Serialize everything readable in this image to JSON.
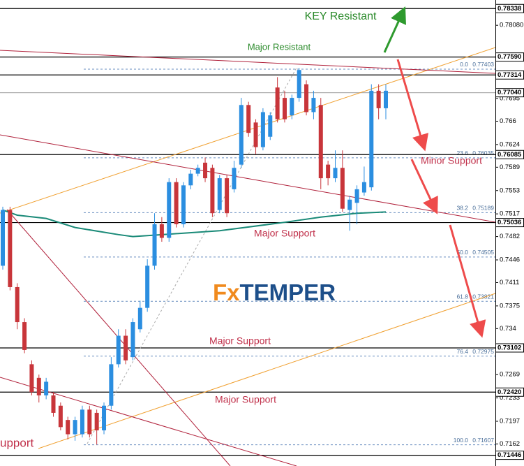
{
  "chart_data": {
    "type": "candlestick",
    "ylim": [
      0.7128,
      0.7847
    ],
    "up_color": "#2b8ee0",
    "down_color": "#c8353a",
    "yticks": [
      {
        "value": 0.7808,
        "label": "0.78080"
      },
      0.7695,
      0.766,
      0.7624,
      0.7589,
      0.7553,
      0.7517,
      0.7482,
      0.7446,
      0.7411,
      0.7375,
      0.734,
      0.7269,
      0.7233,
      0.7197,
      0.7162
    ],
    "levels": [
      0.78338,
      {
        "value": 0.7759,
        "label": "0.77590"
      },
      0.77314,
      {
        "value": 0.7704,
        "label": "0.77040"
      },
      0.76085,
      0.75036,
      0.73102,
      {
        "value": 0.7242,
        "label": "0.72420"
      },
      0.71446
    ],
    "level_colors": [
      "#000000",
      "#000000",
      "#000000",
      "#b0b0b0",
      "#000000",
      "#000000",
      "#000000",
      "#000000",
      "#000000"
    ],
    "fibonacci": [
      {
        "level": "0.0",
        "price": 0.77403
      },
      {
        "level": "23.6",
        "price": 0.76035
      },
      {
        "level": "38.2",
        "price": 0.75189
      },
      {
        "level": "50.0",
        "price": 0.74505
      },
      {
        "level": "61.8",
        "price": 0.73821
      },
      {
        "level": "76.4",
        "price": 0.72975
      },
      {
        "level": "100.0",
        "price": 0.71607
      }
    ],
    "candles": {
      "open": [
        0.7437,
        0.7523,
        0.7404,
        0.735,
        0.7285,
        0.7264,
        0.7237,
        0.7237,
        0.7221,
        0.7199,
        0.7177,
        0.7177,
        0.7215,
        0.721,
        0.7183,
        0.7221,
        0.7285,
        0.7329,
        0.7296,
        0.7339,
        0.7372,
        0.7437,
        0.7501,
        0.748,
        0.7566,
        0.7501,
        0.7561,
        0.7579,
        0.7596,
        0.7588,
        0.7523,
        0.7572,
        0.7555,
        0.7593,
        0.7685,
        0.7658,
        0.762,
        0.7636,
        0.7712,
        0.7696,
        0.7669,
        0.7696,
        0.7717,
        0.7674,
        0.7685,
        0.7593,
        0.7572,
        0.7588,
        0.7523,
        0.7534,
        0.755,
        0.7558,
        0.7707,
        0.768
      ],
      "high": [
        0.7528,
        0.7528,
        0.741,
        0.7356,
        0.7291,
        0.7269,
        0.7264,
        0.7242,
        0.7226,
        0.7204,
        0.7204,
        0.7221,
        0.7221,
        0.7215,
        0.7226,
        0.7296,
        0.7339,
        0.7339,
        0.7356,
        0.7383,
        0.7447,
        0.7518,
        0.7512,
        0.7572,
        0.7572,
        0.7566,
        0.7585,
        0.7593,
        0.7604,
        0.7593,
        0.7577,
        0.7577,
        0.7599,
        0.7696,
        0.769,
        0.7663,
        0.768,
        0.7674,
        0.7728,
        0.7707,
        0.7701,
        0.7742,
        0.7723,
        0.7707,
        0.7696,
        0.7599,
        0.7615,
        0.7615,
        0.7545,
        0.7561,
        0.759,
        0.7717,
        0.7717,
        0.7717
      ],
      "low": [
        0.7431,
        0.7399,
        0.7339,
        0.7302,
        0.7237,
        0.7226,
        0.7231,
        0.7204,
        0.7183,
        0.7169,
        0.7167,
        0.7172,
        0.7172,
        0.7161,
        0.7177,
        0.7215,
        0.728,
        0.7285,
        0.7291,
        0.7334,
        0.7366,
        0.7431,
        0.7474,
        0.7474,
        0.7496,
        0.7496,
        0.7555,
        0.7575,
        0.7566,
        0.7512,
        0.7518,
        0.7512,
        0.755,
        0.7588,
        0.7636,
        0.7609,
        0.7615,
        0.7631,
        0.7658,
        0.7658,
        0.7663,
        0.769,
        0.7669,
        0.7663,
        0.7555,
        0.7561,
        0.7566,
        0.752,
        0.7491,
        0.7501,
        0.7545,
        0.7553,
        0.7663,
        0.7663
      ],
      "close": [
        0.7523,
        0.7404,
        0.735,
        0.7307,
        0.7242,
        0.7237,
        0.7258,
        0.721,
        0.7188,
        0.7177,
        0.7199,
        0.7215,
        0.7177,
        0.7183,
        0.7221,
        0.7285,
        0.7329,
        0.7291,
        0.735,
        0.7372,
        0.7437,
        0.7501,
        0.748,
        0.7566,
        0.7501,
        0.7561,
        0.7579,
        0.7588,
        0.7572,
        0.7518,
        0.7572,
        0.7518,
        0.7588,
        0.7685,
        0.7642,
        0.762,
        0.7674,
        0.7669,
        0.7663,
        0.7663,
        0.7696,
        0.7739,
        0.7674,
        0.7696,
        0.7572,
        0.7572,
        0.7588,
        0.7525,
        0.7539,
        0.7555,
        0.7566,
        0.7707,
        0.768,
        0.7707
      ]
    },
    "moving_average": {
      "color": "#1a8a78",
      "x": [
        0,
        2,
        6,
        10,
        16,
        18,
        22,
        30,
        39,
        44,
        49,
        53
      ],
      "values": [
        0.7523,
        0.7515,
        0.751,
        0.7496,
        0.7485,
        0.7482,
        0.7485,
        0.7491,
        0.7504,
        0.7512,
        0.7518,
        0.752
      ]
    },
    "annotations": [
      "KEY Resistant",
      "Major Resistant",
      "Minor Support",
      "Major Support",
      "Major Support",
      "Major Support",
      "upport"
    ],
    "logo": {
      "fx": "Fx",
      "rest": "TEMPER"
    }
  }
}
